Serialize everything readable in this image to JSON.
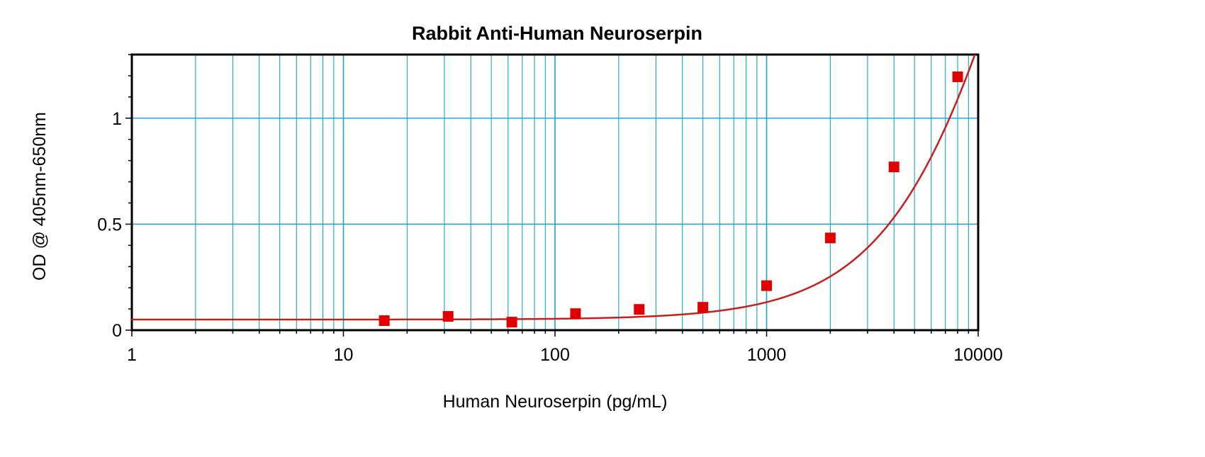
{
  "chart_data": {
    "type": "scatter",
    "title": "Rabbit Anti-Human Neuroserpin",
    "xlabel": "Human Neuroserpin (pg/mL)",
    "ylabel": "OD @ 405nm-650nm",
    "x_scale": "log",
    "xlim": [
      1,
      10000
    ],
    "ylim": [
      0,
      1.3
    ],
    "grid": true,
    "x_tick_labels": [
      "1",
      "10",
      "100",
      "1000",
      "10000"
    ],
    "y_tick_labels": [
      "0",
      "0.5",
      "1"
    ],
    "series": [
      {
        "marker": "square",
        "x": [
          15.6,
          31.25,
          62.5,
          125,
          250,
          500,
          1000,
          2000,
          4000,
          8000
        ],
        "y": [
          0.045,
          0.065,
          0.038,
          0.078,
          0.098,
          0.108,
          0.21,
          0.435,
          0.77,
          1.195
        ]
      }
    ],
    "fit_curve": {
      "type": "4PL",
      "bottom": 0.05,
      "top": 4.2,
      "ec50": 18000,
      "hill": 1.35
    },
    "colors": {
      "grid": "#1aa3c8",
      "points": "#e00000",
      "curve": "#c81e1e",
      "frame": "#000000"
    }
  }
}
